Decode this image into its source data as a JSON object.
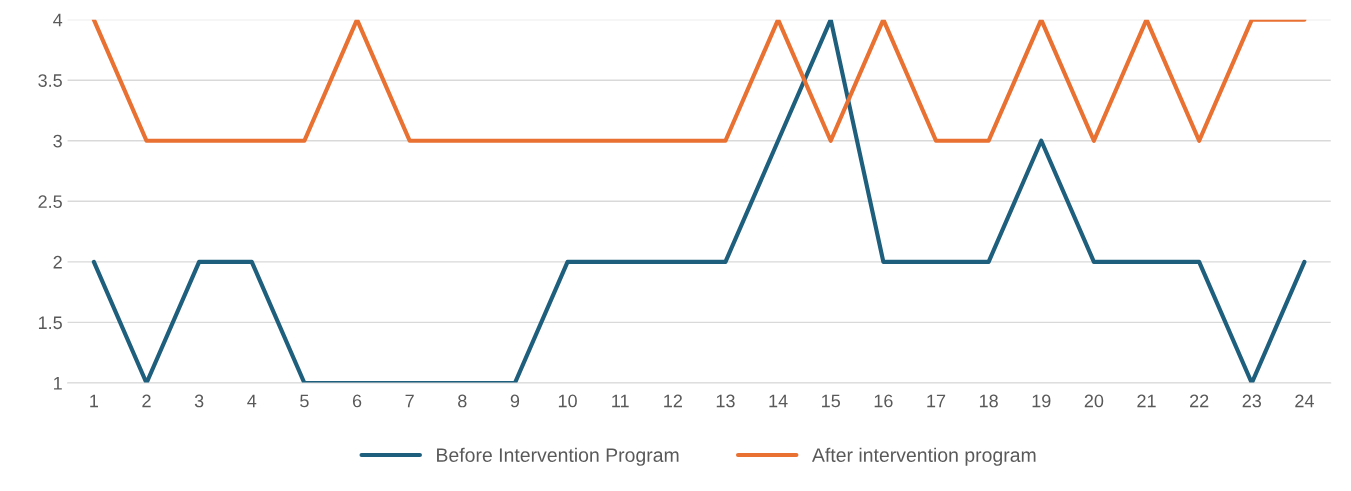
{
  "chart_data": {
    "type": "line",
    "categories": [
      "1",
      "2",
      "3",
      "4",
      "5",
      "6",
      "7",
      "8",
      "9",
      "10",
      "11",
      "12",
      "13",
      "14",
      "15",
      "16",
      "17",
      "18",
      "19",
      "20",
      "21",
      "22",
      "23",
      "24"
    ],
    "series": [
      {
        "name": "Before Intervention Program",
        "color": "#1f5f7e",
        "values": [
          2,
          1,
          2,
          2,
          1,
          1,
          1,
          1,
          1,
          2,
          2,
          2,
          2,
          3,
          4,
          2,
          2,
          2,
          3,
          2,
          2,
          2,
          1,
          2
        ]
      },
      {
        "name": "After intervention program",
        "color": "#e97132",
        "values": [
          4,
          3,
          3,
          3,
          3,
          4,
          3,
          3,
          3,
          3,
          3,
          3,
          3,
          4,
          3,
          4,
          3,
          3,
          4,
          3,
          4,
          3,
          4,
          4
        ]
      }
    ],
    "ylim": [
      1,
      4
    ],
    "yticks": [
      1,
      1.5,
      2,
      2.5,
      3,
      3.5,
      4
    ],
    "grid": "y",
    "legend": "bottom",
    "marker": "none",
    "line_style": "solid"
  }
}
